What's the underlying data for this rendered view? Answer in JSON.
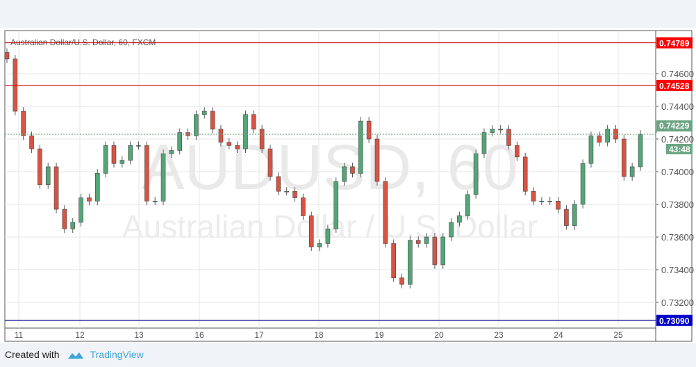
{
  "chart_data": {
    "type": "candlestick",
    "title": "Australian Dollar/U.S. Dollar, 60, FXCM",
    "watermark_symbol": "AUDUSD, 60",
    "watermark_name": "Australian Dollar / U.S. Dollar",
    "x_ticks": [
      "11",
      "12",
      "13",
      "16",
      "17",
      "18",
      "19",
      "20",
      "23",
      "24",
      "25"
    ],
    "y_ticks": [
      "0.74600",
      "0.74400",
      "0.74200",
      "0.74000",
      "0.73800",
      "0.73600",
      "0.73400",
      "0.73200"
    ],
    "y_tick_values": [
      0.746,
      0.744,
      0.742,
      0.74,
      0.738,
      0.736,
      0.734,
      0.732
    ],
    "ylim": [
      0.7296,
      0.7486
    ],
    "grid": true,
    "closes": [
      0.7469,
      0.7437,
      0.7422,
      0.7414,
      0.7392,
      0.7403,
      0.7377,
      0.7365,
      0.7369,
      0.7384,
      0.7382,
      0.7399,
      0.7416,
      0.7405,
      0.7407,
      0.7416,
      0.7416,
      0.7382,
      0.7382,
      0.7411,
      0.7413,
      0.7424,
      0.7422,
      0.7435,
      0.7437,
      0.7426,
      0.7418,
      0.7416,
      0.7414,
      0.7435,
      0.7426,
      0.7414,
      0.7397,
      0.7388,
      0.7388,
      0.7384,
      0.7373,
      0.7354,
      0.7356,
      0.7365,
      0.7394,
      0.7403,
      0.7399,
      0.7431,
      0.742,
      0.7394,
      0.7356,
      0.7335,
      0.7331,
      0.7358,
      0.7356,
      0.736,
      0.7343,
      0.736,
      0.7369,
      0.7373,
      0.7386,
      0.7411,
      0.7424,
      0.7426,
      0.7426,
      0.7416,
      0.7409,
      0.7388,
      0.7382,
      0.7382,
      0.7382,
      0.7377,
      0.7367,
      0.738,
      0.7405,
      0.7422,
      0.7418,
      0.7426,
      0.742,
      0.7397,
      0.7403,
      0.74229
    ],
    "horizontal_lines": [
      {
        "value": 0.74789,
        "label": "0.74789",
        "color": "#cc0000"
      },
      {
        "value": 0.74528,
        "label": "0.74528",
        "color": "#cc0000"
      },
      {
        "value": 0.7309,
        "label": "0.73090",
        "color": "#00008b"
      }
    ],
    "last_price": {
      "value": 0.74229,
      "label": "0.74229",
      "countdown": "43:48",
      "color": "#6ba583"
    },
    "colors": {
      "up": "#53a677",
      "down": "#d75442",
      "label_red": "#ff0000",
      "label_blue": "#0000cc"
    }
  },
  "footer": {
    "created_with": "Created with",
    "brand": "TradingView"
  }
}
